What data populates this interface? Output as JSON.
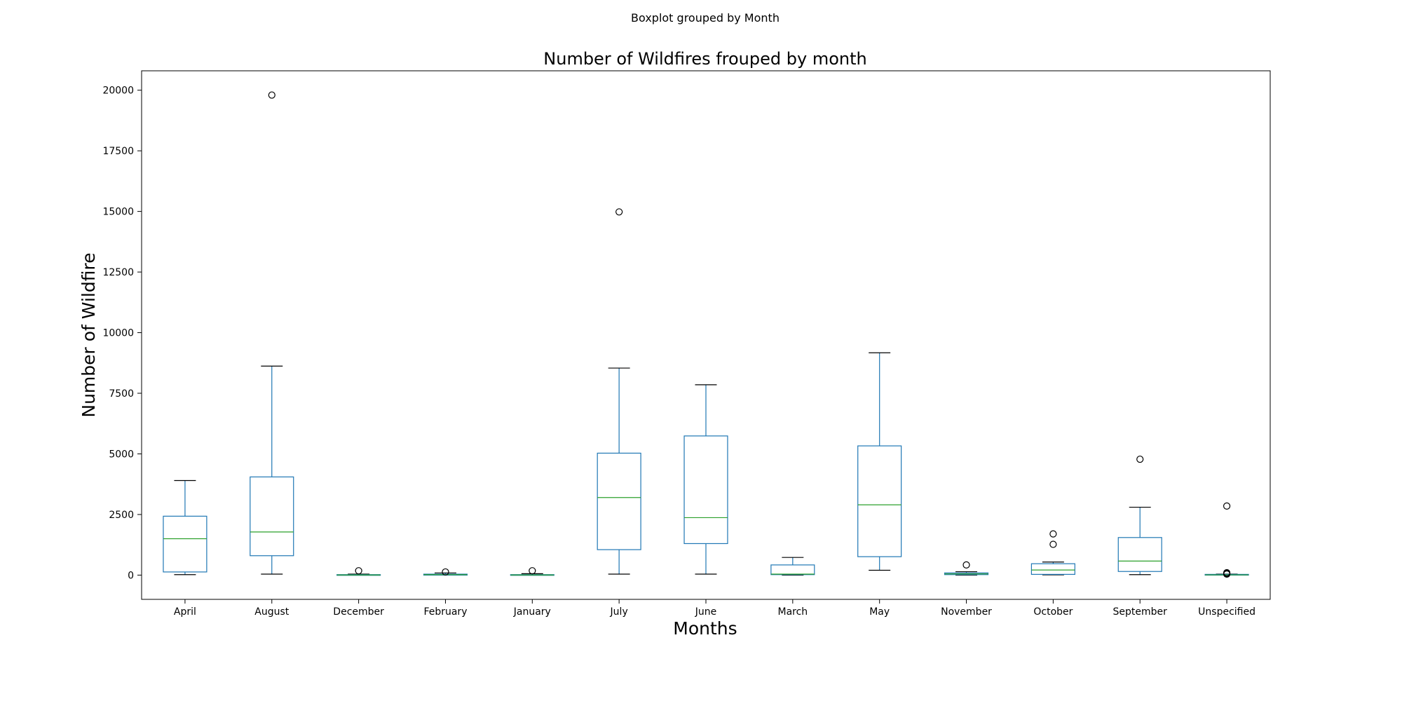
{
  "chart_data": {
    "type": "boxplot",
    "suptitle": "Boxplot grouped by Month",
    "title": "Number of Wildfires frouped by month",
    "xlabel": "Months",
    "ylabel": "Number of Wildfire",
    "ylim": [
      -1000,
      20800
    ],
    "yticks": [
      0,
      2500,
      5000,
      7500,
      10000,
      12500,
      15000,
      17500,
      20000
    ],
    "ytick_labels": [
      "0",
      "2500",
      "5000",
      "7500",
      "10000",
      "12500",
      "15000",
      "17500",
      "20000"
    ],
    "grid": false,
    "legend": "none",
    "categories": [
      "April",
      "August",
      "December",
      "February",
      "January",
      "July",
      "June",
      "March",
      "May",
      "November",
      "October",
      "September",
      "Unspecified"
    ],
    "boxes": [
      {
        "category": "April",
        "whisker_low": 20,
        "q1": 130,
        "median": 1500,
        "q3": 2430,
        "whisker_high": 3900,
        "outliers": []
      },
      {
        "category": "August",
        "whisker_low": 40,
        "q1": 800,
        "median": 1780,
        "q3": 4050,
        "whisker_high": 8620,
        "outliers": [
          19800
        ]
      },
      {
        "category": "December",
        "whisker_low": 0,
        "q1": 0,
        "median": 5,
        "q3": 20,
        "whisker_high": 40,
        "outliers": [
          180
        ]
      },
      {
        "category": "February",
        "whisker_low": 0,
        "q1": 0,
        "median": 20,
        "q3": 40,
        "whisker_high": 90,
        "outliers": [
          130
        ]
      },
      {
        "category": "January",
        "whisker_low": 0,
        "q1": 0,
        "median": 5,
        "q3": 20,
        "whisker_high": 60,
        "outliers": [
          180
        ]
      },
      {
        "category": "July",
        "whisker_low": 40,
        "q1": 1050,
        "median": 3200,
        "q3": 5030,
        "whisker_high": 8540,
        "outliers": [
          14980
        ]
      },
      {
        "category": "June",
        "whisker_low": 40,
        "q1": 1300,
        "median": 2370,
        "q3": 5740,
        "whisker_high": 7850,
        "outliers": []
      },
      {
        "category": "March",
        "whisker_low": 0,
        "q1": 20,
        "median": 40,
        "q3": 420,
        "whisker_high": 730,
        "outliers": []
      },
      {
        "category": "May",
        "whisker_low": 200,
        "q1": 760,
        "median": 2900,
        "q3": 5330,
        "whisker_high": 9170,
        "outliers": []
      },
      {
        "category": "November",
        "whisker_low": 0,
        "q1": 20,
        "median": 50,
        "q3": 90,
        "whisker_high": 140,
        "outliers": [
          420
        ]
      },
      {
        "category": "October",
        "whisker_low": 10,
        "q1": 30,
        "median": 210,
        "q3": 470,
        "whisker_high": 540,
        "outliers": [
          1270,
          1700
        ]
      },
      {
        "category": "September",
        "whisker_low": 20,
        "q1": 150,
        "median": 580,
        "q3": 1550,
        "whisker_high": 2800,
        "outliers": [
          4780
        ]
      },
      {
        "category": "Unspecified",
        "whisker_low": 0,
        "q1": 0,
        "median": 10,
        "q3": 30,
        "whisker_high": 40,
        "outliers": [
          40,
          70,
          100,
          2850
        ]
      }
    ]
  },
  "colors": {
    "box": "#1f77b4",
    "median": "#2ca02c",
    "whisker_cap": "#000000",
    "flier": "#000000",
    "frame": "#000000"
  }
}
